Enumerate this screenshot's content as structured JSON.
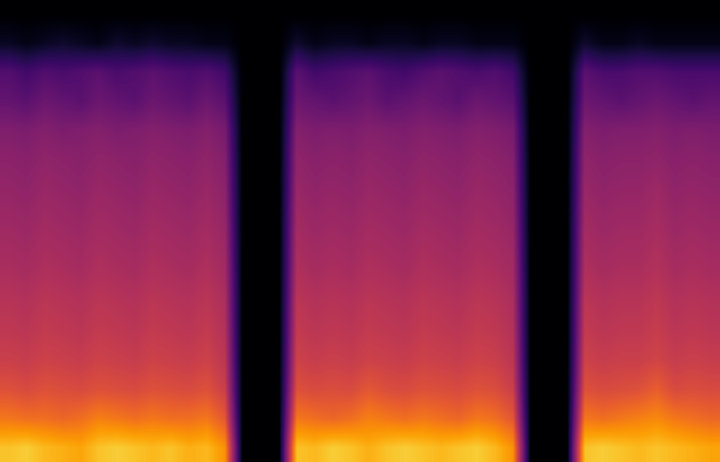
{
  "chart_data": {
    "type": "heatmap",
    "tick_labels": false,
    "zlim": [
      0,
      100
    ],
    "cells": [
      [
        0,
        0,
        0,
        0,
        0,
        0,
        0,
        0,
        0,
        0,
        0,
        0,
        0,
        0,
        0,
        0,
        0,
        0,
        0,
        0,
        0,
        0,
        0,
        0,
        0,
        0,
        0,
        0,
        0,
        0,
        0,
        0,
        0,
        0,
        0,
        0,
        0,
        0,
        0,
        0
      ],
      [
        6,
        4,
        6,
        8,
        6,
        4,
        8,
        6,
        8,
        6,
        6,
        4,
        4,
        0,
        0,
        0,
        8,
        4,
        6,
        6,
        4,
        6,
        6,
        4,
        6,
        6,
        4,
        4,
        4,
        0,
        0,
        0,
        8,
        4,
        4,
        6,
        4,
        4,
        4,
        4
      ],
      [
        24,
        20,
        24,
        22,
        24,
        26,
        22,
        24,
        26,
        24,
        22,
        24,
        20,
        0,
        0,
        0,
        26,
        20,
        22,
        24,
        26,
        22,
        20,
        24,
        26,
        24,
        22,
        24,
        20,
        0,
        0,
        0,
        26,
        22,
        22,
        24,
        24,
        22,
        22,
        22
      ],
      [
        28,
        26,
        30,
        28,
        26,
        30,
        28,
        26,
        30,
        28,
        26,
        30,
        26,
        0,
        0,
        0,
        30,
        28,
        26,
        28,
        30,
        26,
        28,
        30,
        28,
        26,
        30,
        28,
        26,
        0,
        0,
        0,
        30,
        28,
        26,
        28,
        30,
        28,
        26,
        28
      ],
      [
        35,
        34,
        36,
        34,
        35,
        36,
        34,
        35,
        36,
        35,
        34,
        36,
        33,
        0,
        0,
        0,
        36,
        34,
        35,
        34,
        36,
        35,
        34,
        36,
        35,
        34,
        36,
        35,
        33,
        0,
        0,
        0,
        36,
        34,
        35,
        35,
        36,
        34,
        35,
        34
      ],
      [
        38,
        37,
        39,
        38,
        37,
        39,
        38,
        37,
        39,
        38,
        37,
        39,
        36,
        0,
        0,
        0,
        39,
        37,
        38,
        37,
        39,
        38,
        37,
        39,
        38,
        37,
        39,
        38,
        36,
        0,
        0,
        0,
        39,
        37,
        38,
        38,
        39,
        37,
        38,
        37
      ],
      [
        40,
        39,
        41,
        40,
        39,
        41,
        40,
        39,
        41,
        40,
        39,
        41,
        38,
        0,
        0,
        0,
        41,
        39,
        40,
        39,
        41,
        40,
        39,
        41,
        40,
        39,
        41,
        40,
        38,
        0,
        0,
        0,
        41,
        39,
        40,
        40,
        42,
        39,
        40,
        39
      ],
      [
        42,
        41,
        43,
        42,
        41,
        43,
        42,
        41,
        43,
        42,
        41,
        43,
        40,
        0,
        0,
        0,
        43,
        41,
        42,
        41,
        43,
        42,
        41,
        43,
        42,
        41,
        43,
        42,
        40,
        0,
        0,
        0,
        43,
        41,
        42,
        42,
        44,
        41,
        42,
        41
      ],
      [
        44,
        43,
        45,
        44,
        43,
        45,
        44,
        43,
        45,
        44,
        43,
        45,
        42,
        0,
        0,
        0,
        45,
        43,
        44,
        43,
        45,
        44,
        43,
        45,
        44,
        43,
        45,
        44,
        42,
        0,
        0,
        0,
        45,
        43,
        44,
        44,
        46,
        43,
        44,
        43
      ],
      [
        46,
        45,
        47,
        46,
        45,
        47,
        46,
        45,
        47,
        46,
        45,
        47,
        44,
        0,
        0,
        0,
        47,
        45,
        46,
        45,
        47,
        46,
        45,
        47,
        46,
        45,
        47,
        46,
        44,
        0,
        0,
        0,
        47,
        45,
        46,
        46,
        48,
        45,
        46,
        45
      ],
      [
        49,
        48,
        50,
        49,
        48,
        50,
        49,
        48,
        50,
        49,
        48,
        50,
        46,
        0,
        0,
        0,
        50,
        48,
        49,
        48,
        50,
        49,
        48,
        50,
        49,
        48,
        50,
        49,
        46,
        0,
        0,
        0,
        50,
        48,
        49,
        49,
        51,
        48,
        49,
        48
      ],
      [
        51,
        50,
        52,
        51,
        50,
        52,
        51,
        50,
        52,
        51,
        50,
        52,
        48,
        0,
        0,
        0,
        52,
        50,
        51,
        50,
        52,
        51,
        50,
        52,
        51,
        50,
        52,
        51,
        48,
        0,
        0,
        0,
        52,
        50,
        51,
        51,
        53,
        50,
        51,
        50
      ],
      [
        54,
        53,
        55,
        54,
        53,
        55,
        54,
        53,
        55,
        54,
        53,
        55,
        50,
        0,
        0,
        0,
        55,
        53,
        54,
        53,
        55,
        54,
        53,
        55,
        54,
        53,
        55,
        54,
        50,
        0,
        0,
        0,
        55,
        53,
        54,
        54,
        56,
        53,
        54,
        53
      ],
      [
        60,
        58,
        60,
        59,
        58,
        60,
        59,
        58,
        60,
        59,
        58,
        60,
        54,
        0,
        0,
        0,
        60,
        58,
        59,
        58,
        62,
        59,
        58,
        60,
        59,
        58,
        60,
        59,
        54,
        0,
        0,
        0,
        60,
        58,
        59,
        60,
        64,
        58,
        59,
        58
      ],
      [
        70,
        68,
        68,
        66,
        68,
        72,
        70,
        68,
        70,
        68,
        68,
        70,
        62,
        0,
        0,
        0,
        70,
        68,
        66,
        68,
        72,
        70,
        68,
        70,
        68,
        66,
        70,
        68,
        62,
        0,
        0,
        0,
        70,
        68,
        70,
        72,
        74,
        70,
        68,
        66
      ],
      [
        86,
        88,
        84,
        82,
        80,
        86,
        88,
        86,
        84,
        86,
        82,
        84,
        76,
        0,
        0,
        0,
        86,
        84,
        88,
        86,
        82,
        86,
        88,
        86,
        84,
        86,
        88,
        84,
        76,
        0,
        0,
        0,
        86,
        88,
        86,
        84,
        86,
        84,
        82,
        80
      ]
    ]
  }
}
